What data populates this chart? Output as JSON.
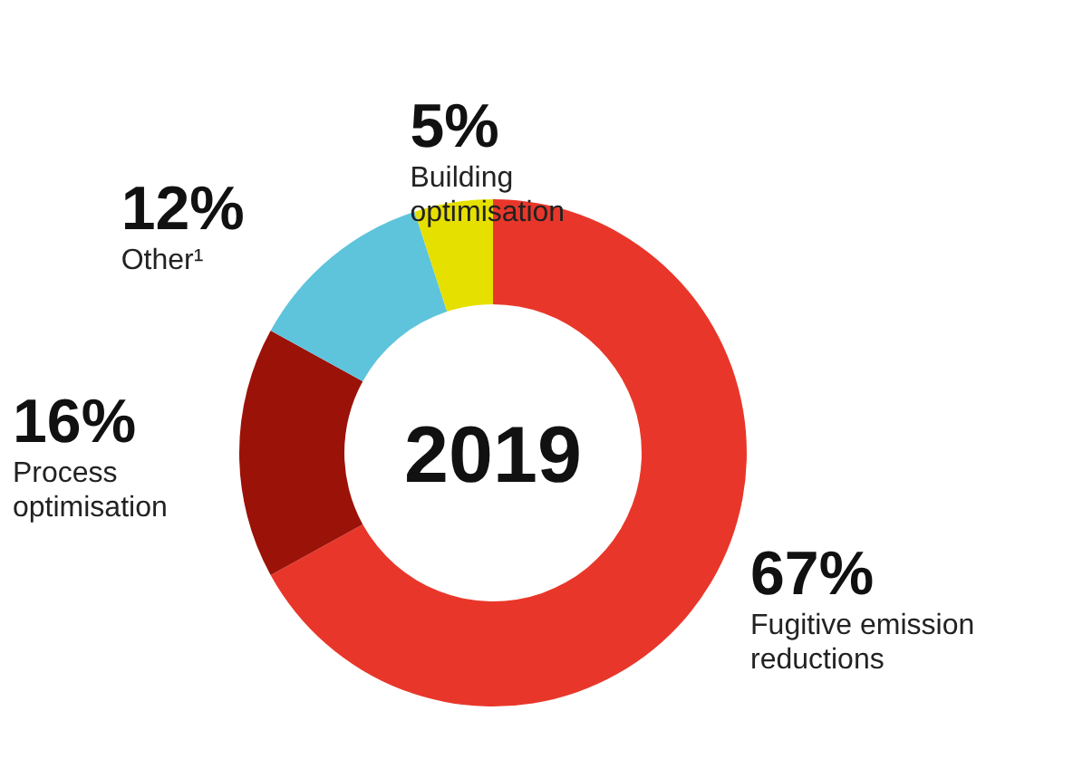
{
  "chart_data": {
    "type": "donut",
    "title": "2019",
    "categories": [
      "Fugitive emission reductions",
      "Process optimisation",
      "Other¹",
      "Building optimisation"
    ],
    "values": [
      67,
      16,
      12,
      5
    ],
    "value_labels": [
      "67%",
      "16%",
      "12%",
      "5%"
    ],
    "colors": [
      "#e8372a",
      "#9b1208",
      "#5ec4dc",
      "#e6e000"
    ]
  }
}
